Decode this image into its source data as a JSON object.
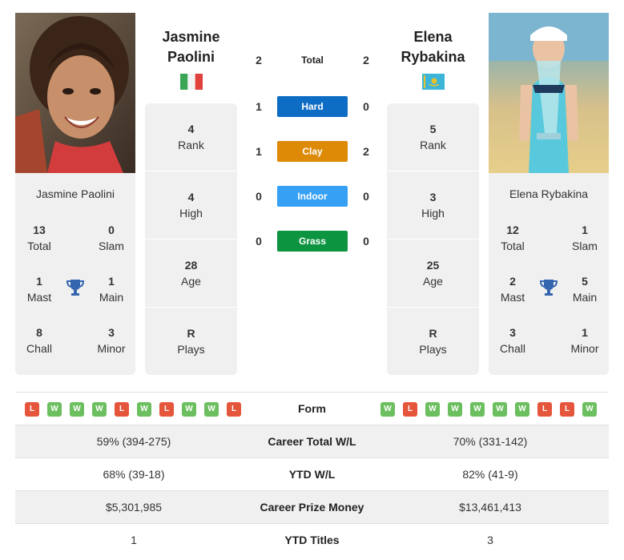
{
  "colors": {
    "hard": "#0d6cc4",
    "clay": "#dd8a07",
    "indoor": "#36a0f5",
    "grass": "#0d9440",
    "win": "#6cbf5f",
    "loss": "#e5553b",
    "trophy": "#3466b0"
  },
  "player_left": {
    "first_name": "Jasmine",
    "last_name": "Paolini",
    "full_name": "Jasmine Paolini",
    "flag": "italy-flag",
    "card": {
      "total": "13",
      "total_label": "Total",
      "slam": "0",
      "slam_label": "Slam",
      "mast": "1",
      "mast_label": "Mast",
      "main": "1",
      "main_label": "Main",
      "chall": "8",
      "chall_label": "Chall",
      "minor": "3",
      "minor_label": "Minor"
    },
    "stats": {
      "rank": "4",
      "rank_label": "Rank",
      "high": "4",
      "high_label": "High",
      "age": "28",
      "age_label": "Age",
      "plays": "R",
      "plays_label": "Plays"
    }
  },
  "player_right": {
    "first_name": "Elena",
    "last_name": "Rybakina",
    "full_name": "Elena Rybakina",
    "flag": "kazakhstan-flag",
    "card": {
      "total": "12",
      "total_label": "Total",
      "slam": "1",
      "slam_label": "Slam",
      "mast": "2",
      "mast_label": "Mast",
      "main": "5",
      "main_label": "Main",
      "chall": "3",
      "chall_label": "Chall",
      "minor": "1",
      "minor_label": "Minor"
    },
    "stats": {
      "rank": "5",
      "rank_label": "Rank",
      "high": "3",
      "high_label": "High",
      "age": "25",
      "age_label": "Age",
      "plays": "R",
      "plays_label": "Plays"
    }
  },
  "h2h": {
    "total": {
      "label": "Total",
      "left": "2",
      "right": "2"
    },
    "hard": {
      "label": "Hard",
      "left": "1",
      "right": "0"
    },
    "clay": {
      "label": "Clay",
      "left": "1",
      "right": "2"
    },
    "indoor": {
      "label": "Indoor",
      "left": "0",
      "right": "0"
    },
    "grass": {
      "label": "Grass",
      "left": "0",
      "right": "0"
    }
  },
  "table": {
    "form": {
      "label": "Form",
      "left": [
        "L",
        "W",
        "W",
        "W",
        "L",
        "W",
        "L",
        "W",
        "W",
        "L"
      ],
      "right": [
        "W",
        "L",
        "W",
        "W",
        "W",
        "W",
        "W",
        "L",
        "L",
        "W"
      ]
    },
    "career_wl": {
      "label": "Career Total W/L",
      "left": "59% (394-275)",
      "right": "70% (331-142)"
    },
    "ytd_wl": {
      "label": "YTD W/L",
      "left": "68% (39-18)",
      "right": "82% (41-9)"
    },
    "prize": {
      "label": "Career Prize Money",
      "left": "$5,301,985",
      "right": "$13,461,413"
    },
    "ytd_titles": {
      "label": "YTD Titles",
      "left": "1",
      "right": "3"
    }
  }
}
